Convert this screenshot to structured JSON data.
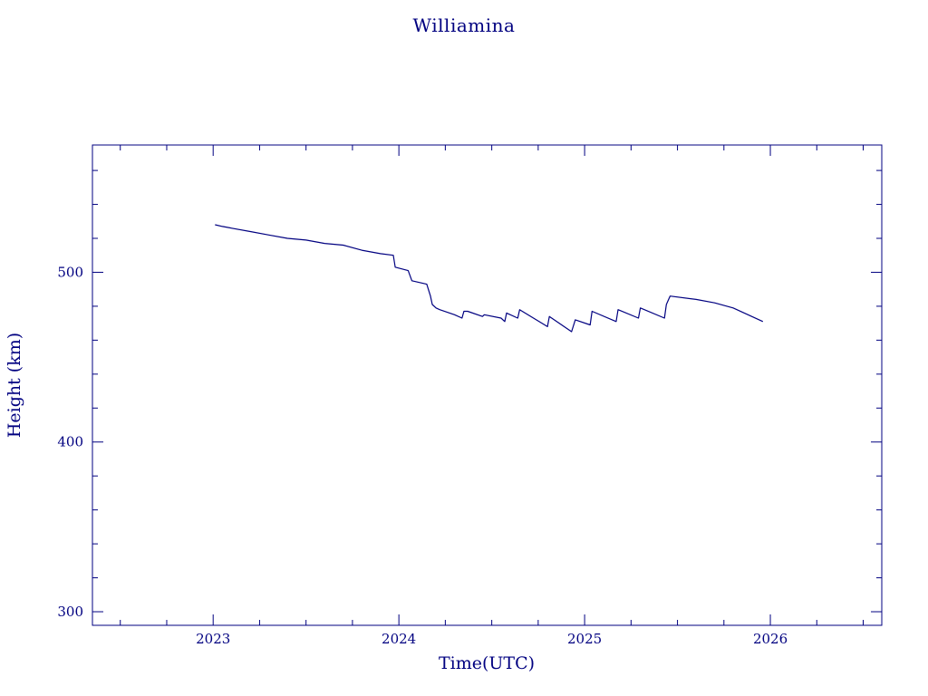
{
  "colors": {
    "ink": "#000080",
    "background": "#ffffff"
  },
  "chart_data": {
    "type": "line",
    "title": "Williamina",
    "xlabel": "Time(UTC)",
    "ylabel": "Height (km)",
    "xlim": [
      2022.35,
      2026.6
    ],
    "ylim": [
      292,
      575
    ],
    "x_ticks": [
      2023,
      2024,
      2025,
      2026
    ],
    "x_tick_labels": [
      "2023",
      "2024",
      "2025",
      "2026"
    ],
    "y_ticks": [
      300,
      400,
      500
    ],
    "y_tick_labels": [
      "300",
      "400",
      "500"
    ],
    "grid": false,
    "legend": "none",
    "series": [
      {
        "x": [
          2023.01,
          2023.05,
          2023.1,
          2023.2,
          2023.3,
          2023.4,
          2023.5,
          2023.6,
          2023.7,
          2023.8,
          2023.9,
          2023.97,
          2023.98,
          2024.05,
          2024.07,
          2024.15,
          2024.17,
          2024.18,
          2024.2,
          2024.22,
          2024.3,
          2024.34,
          2024.35,
          2024.37,
          2024.45,
          2024.46,
          2024.55,
          2024.57,
          2024.58,
          2024.64,
          2024.65,
          2024.8,
          2024.81,
          2024.93,
          2024.95,
          2025.03,
          2025.04,
          2025.17,
          2025.18,
          2025.29,
          2025.3,
          2025.43,
          2025.44,
          2025.46,
          2025.6,
          2025.7,
          2025.8,
          2025.9,
          2025.96
        ],
        "y": [
          528,
          527,
          526,
          524,
          522,
          520,
          519,
          517,
          516,
          513,
          511,
          510,
          503,
          501,
          495,
          493,
          486,
          481,
          479,
          478,
          475,
          473,
          477,
          477,
          474,
          475,
          473,
          471,
          476,
          473,
          478,
          468,
          474,
          465,
          472,
          469,
          477,
          471,
          478,
          473,
          479,
          473,
          481,
          486,
          484,
          482,
          479,
          474,
          471
        ]
      }
    ]
  }
}
